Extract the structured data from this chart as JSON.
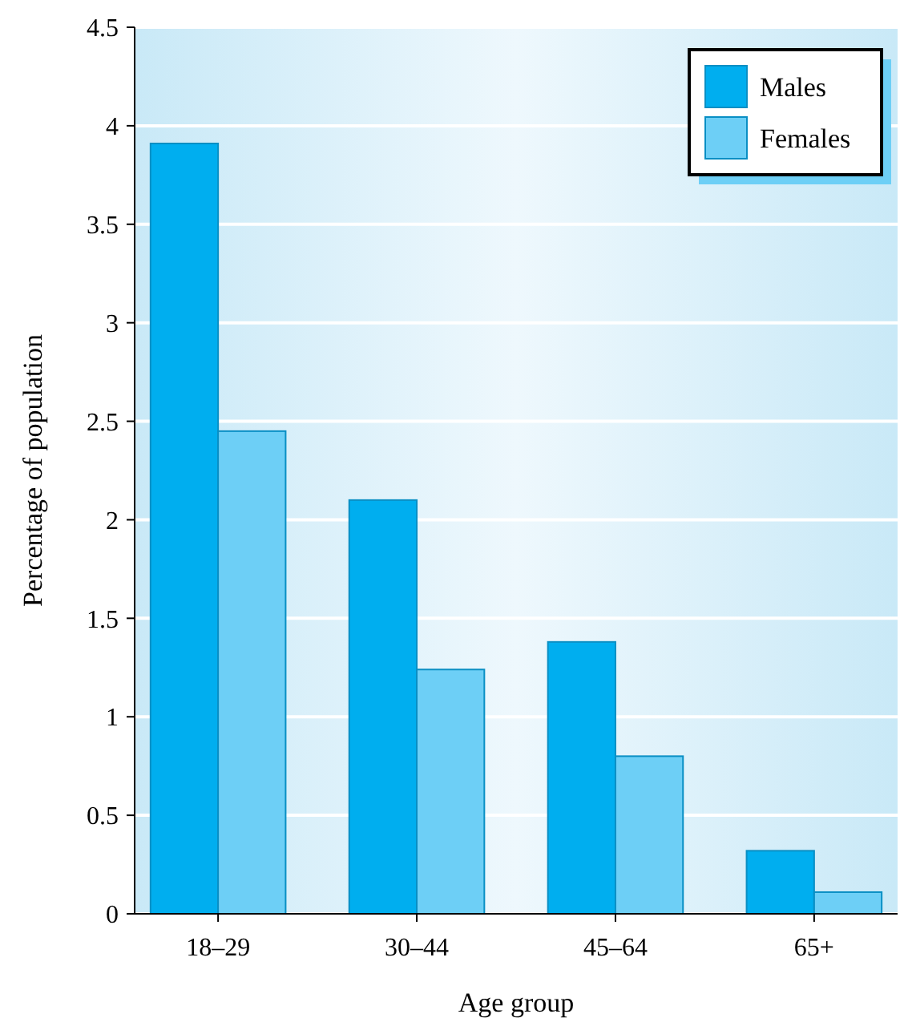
{
  "chart_data": {
    "type": "bar",
    "xlabel": "Age group",
    "ylabel": "Percentage of population",
    "categories": [
      "18–29",
      "30–44",
      "45–64",
      "65+"
    ],
    "series": [
      {
        "name": "Males",
        "color": "#00aeef",
        "values": [
          3.91,
          2.1,
          1.38,
          0.32
        ]
      },
      {
        "name": "Females",
        "color": "#6dcff6",
        "values": [
          2.45,
          1.24,
          0.8,
          0.11
        ]
      }
    ],
    "ylim": [
      0,
      4.5
    ],
    "yticks": [
      0,
      0.5,
      1,
      1.5,
      2,
      2.5,
      3,
      3.5,
      4,
      4.5
    ],
    "grid": "y",
    "legend": "top right"
  }
}
